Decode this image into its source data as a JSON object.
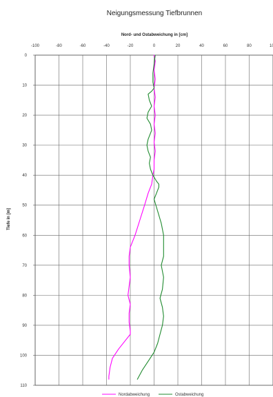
{
  "chart_data": {
    "type": "line",
    "title": "Neigungsmessung Tiefbrunnen",
    "xlabel": "Nord- und Ostabweichung in [cm]",
    "ylabel": "Tiefe in [m]",
    "xlim": [
      -100,
      100
    ],
    "ylim": [
      0,
      110
    ],
    "y_inverted": true,
    "x_ticks": [
      "-100",
      "-80",
      "-60",
      "-40",
      "-20",
      "0",
      "20",
      "40",
      "60",
      "80",
      "100"
    ],
    "y_ticks": [
      "0",
      "10",
      "20",
      "30",
      "40",
      "50",
      "60",
      "70",
      "80",
      "90",
      "100",
      "110"
    ],
    "grid": true,
    "legend_position": "bottom",
    "series": [
      {
        "name": "Nordabweichung",
        "color": "#ff00ff",
        "points": [
          [
            0,
            0
          ],
          [
            1,
            2
          ],
          [
            0,
            5
          ],
          [
            1,
            8
          ],
          [
            0,
            11
          ],
          [
            1,
            14
          ],
          [
            0,
            17
          ],
          [
            1,
            20
          ],
          [
            0,
            23
          ],
          [
            1,
            26
          ],
          [
            0,
            29
          ],
          [
            1,
            32
          ],
          [
            0,
            35
          ],
          [
            0,
            38
          ],
          [
            -1,
            40
          ],
          [
            -2,
            43
          ],
          [
            -5,
            46
          ],
          [
            -8,
            50
          ],
          [
            -12,
            55
          ],
          [
            -16,
            60
          ],
          [
            -20,
            64
          ],
          [
            -21,
            67
          ],
          [
            -21,
            70
          ],
          [
            -20,
            74
          ],
          [
            -21,
            77
          ],
          [
            -22,
            80
          ],
          [
            -20,
            83
          ],
          [
            -21,
            86
          ],
          [
            -21,
            89
          ],
          [
            -20,
            92
          ],
          [
            -20,
            93
          ],
          [
            -24,
            95
          ],
          [
            -30,
            98
          ],
          [
            -35,
            101
          ],
          [
            -37,
            104
          ],
          [
            -38,
            107
          ],
          [
            -38,
            108
          ]
        ]
      },
      {
        "name": "Ostabweichung",
        "color": "#1f8a2e",
        "points": [
          [
            1,
            0
          ],
          [
            0,
            3
          ],
          [
            -1,
            6
          ],
          [
            -1,
            9
          ],
          [
            0,
            11
          ],
          [
            -2,
            12
          ],
          [
            -5,
            13
          ],
          [
            -4,
            15
          ],
          [
            -2,
            17
          ],
          [
            -5,
            19
          ],
          [
            -6,
            21
          ],
          [
            -3,
            23
          ],
          [
            -2,
            25
          ],
          [
            -5,
            28
          ],
          [
            -6,
            30
          ],
          [
            -5,
            32
          ],
          [
            -3,
            34
          ],
          [
            -4,
            36
          ],
          [
            -3,
            38
          ],
          [
            -1,
            40
          ],
          [
            2,
            42
          ],
          [
            4,
            43
          ],
          [
            4,
            44
          ],
          [
            2,
            46
          ],
          [
            0,
            48
          ],
          [
            3,
            52
          ],
          [
            6,
            56
          ],
          [
            8,
            60
          ],
          [
            8,
            64
          ],
          [
            8,
            67
          ],
          [
            6,
            70
          ],
          [
            8,
            74
          ],
          [
            7,
            78
          ],
          [
            5,
            81
          ],
          [
            7,
            84
          ],
          [
            8,
            87
          ],
          [
            7,
            90
          ],
          [
            5,
            93
          ],
          [
            3,
            96
          ],
          [
            0,
            99
          ],
          [
            -5,
            102
          ],
          [
            -10,
            105
          ],
          [
            -14,
            108
          ]
        ]
      }
    ]
  }
}
